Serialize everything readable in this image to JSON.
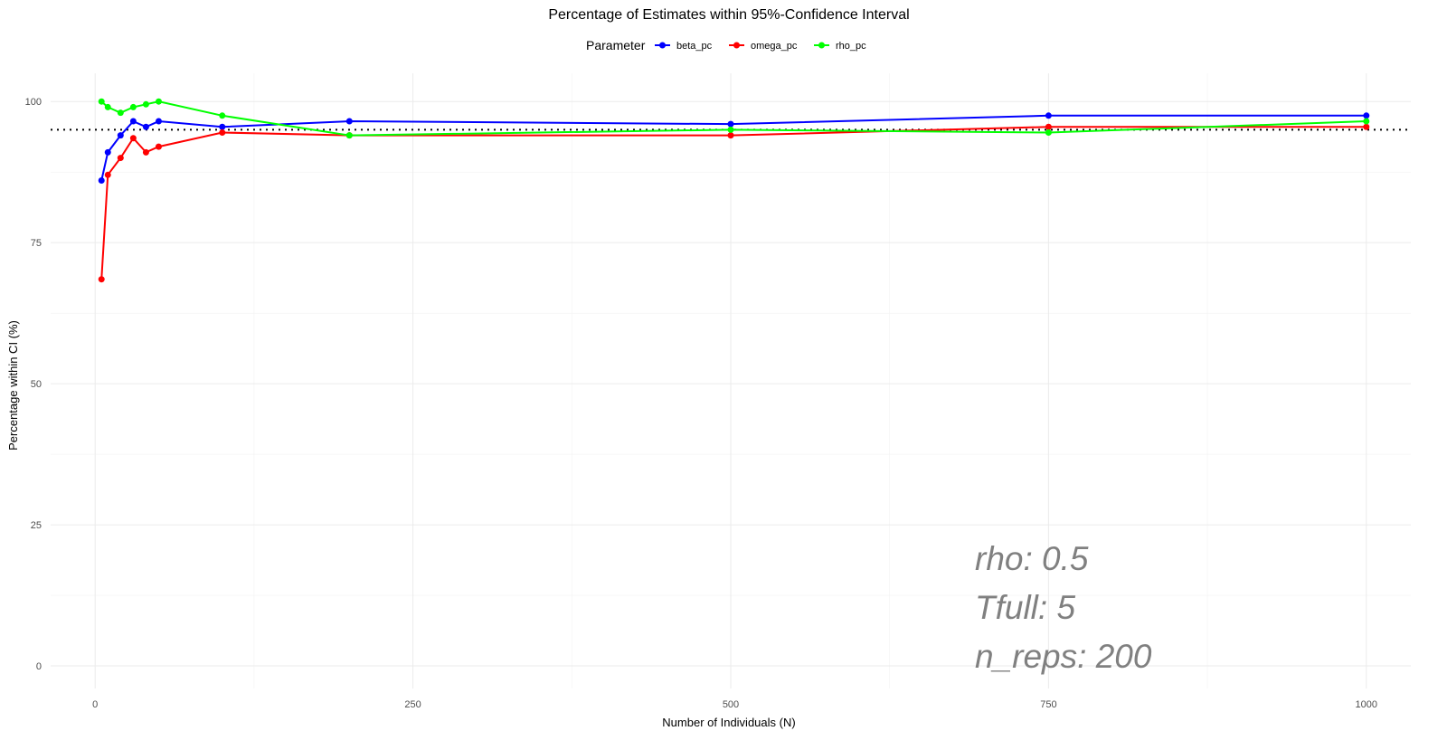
{
  "chart_data": {
    "type": "line",
    "title": "Percentage of Estimates within 95%-Confidence Interval",
    "xlabel": "Number of Individuals (N)",
    "ylabel": "Percentage within CI (%)",
    "xlim": [
      -35,
      1035
    ],
    "ylim": [
      -4,
      105
    ],
    "x_ticks": [
      0,
      250,
      500,
      750,
      1000
    ],
    "y_ticks": [
      0,
      25,
      50,
      75,
      100
    ],
    "grid": true,
    "legend": {
      "title": "Parameter",
      "position": "top"
    },
    "reference_line": {
      "y": 95,
      "style": "dotted",
      "color": "#000000"
    },
    "series": [
      {
        "name": "beta_pc",
        "color": "#0000ff",
        "x": [
          5,
          10,
          20,
          30,
          40,
          50,
          100,
          200,
          500,
          750,
          1000
        ],
        "y": [
          86,
          91,
          94,
          96.5,
          95.5,
          96.5,
          95.5,
          96.5,
          96,
          97.5,
          97.5
        ]
      },
      {
        "name": "omega_pc",
        "color": "#ff0000",
        "x": [
          5,
          10,
          20,
          30,
          40,
          50,
          100,
          200,
          500,
          750,
          1000
        ],
        "y": [
          68.5,
          87,
          90,
          93.5,
          91,
          92,
          94.5,
          94,
          94,
          95.5,
          95.5
        ]
      },
      {
        "name": "rho_pc",
        "color": "#00ff00",
        "x": [
          5,
          10,
          20,
          30,
          40,
          50,
          100,
          200,
          500,
          750,
          1000
        ],
        "y": [
          100,
          99,
          98,
          99,
          99.5,
          100,
          97.5,
          94,
          95,
          94.5,
          96.5
        ]
      }
    ],
    "annotations": [
      "rho: 0.5",
      "Tfull: 5",
      "n_reps: 200"
    ]
  }
}
